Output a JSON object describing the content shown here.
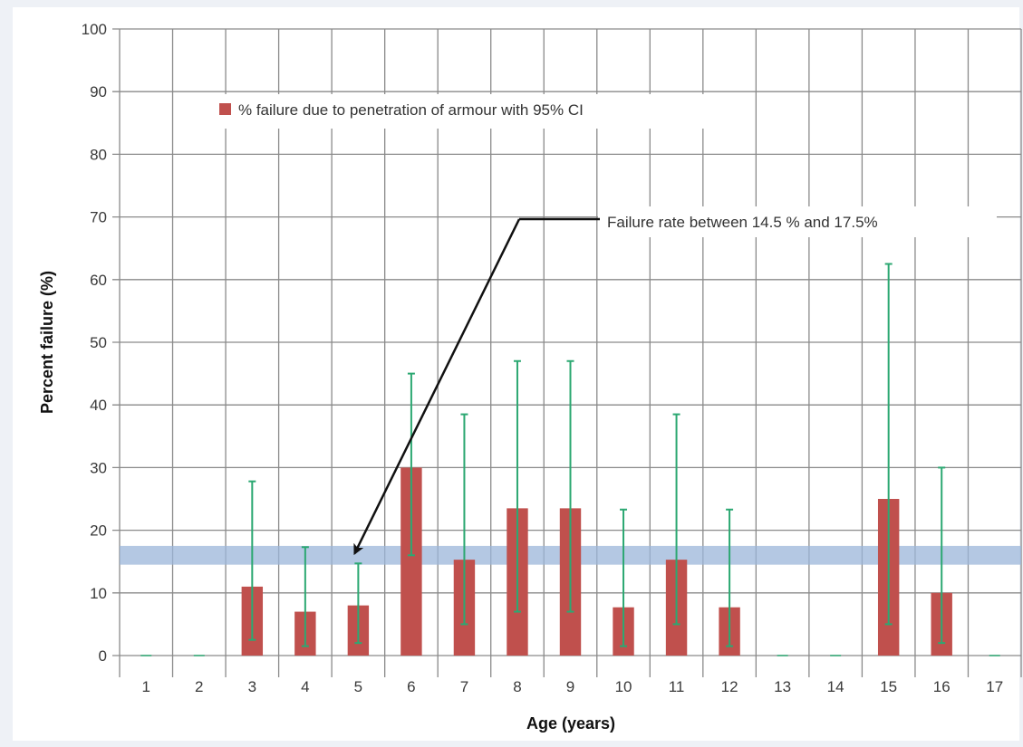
{
  "chart_data": {
    "type": "bar",
    "categories": [
      "1",
      "2",
      "3",
      "4",
      "5",
      "6",
      "7",
      "8",
      "9",
      "10",
      "11",
      "12",
      "13",
      "14",
      "15",
      "16",
      "17"
    ],
    "series": [
      {
        "name": "% failure due to penetration of armour with 95% CI",
        "values": [
          0,
          0,
          11,
          7,
          8,
          30,
          15.3,
          23.5,
          23.5,
          7.7,
          15.3,
          7.7,
          0,
          0,
          25,
          10,
          0
        ],
        "ci_lower": [
          0,
          0,
          2.5,
          1.5,
          2,
          16,
          5,
          7,
          7,
          1.5,
          5,
          1.5,
          0,
          0,
          5,
          2,
          0
        ],
        "ci_upper": [
          0,
          0,
          27.8,
          17.3,
          14.7,
          45,
          38.5,
          47,
          47,
          23.3,
          38.5,
          23.3,
          0,
          0,
          62.5,
          30,
          0
        ],
        "color": "#c0504d",
        "error_bar_color": "#2ca872"
      }
    ],
    "band": {
      "from": 14.5,
      "to": 17.5,
      "color": "#9bb5d9"
    },
    "xlabel": "Age (years)",
    "ylabel": "Percent failure (%)",
    "ylim": [
      0,
      100
    ],
    "yticks": [
      0,
      10,
      20,
      30,
      40,
      50,
      60,
      70,
      80,
      90,
      100
    ],
    "grid": true,
    "legend_position": "top-left",
    "annotation": {
      "text": "Failure rate between 14.5 % and 17.5%",
      "points_to": {
        "x": "5",
        "y": 16
      }
    }
  }
}
